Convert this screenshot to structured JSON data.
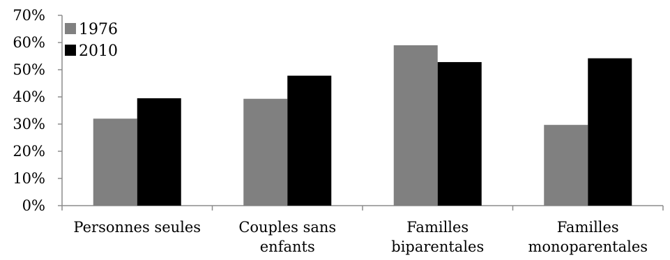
{
  "chart_data": {
    "type": "bar",
    "title": "",
    "xlabel": "",
    "ylabel": "",
    "categories": [
      [
        "Personnes seules"
      ],
      [
        "Couples sans",
        "enfants"
      ],
      [
        "Familles",
        "biparentales"
      ],
      [
        "Familles",
        "monoparentales"
      ]
    ],
    "series": [
      {
        "name": "1976",
        "color": "#808080",
        "values": [
          32,
          39.3,
          59,
          29.7
        ]
      },
      {
        "name": "2010",
        "color": "#000000",
        "values": [
          39.5,
          47.8,
          52.8,
          54.2
        ]
      }
    ],
    "ylim": [
      0,
      70
    ],
    "yticks": [
      0,
      10,
      20,
      30,
      40,
      50,
      60,
      70
    ],
    "ytick_format": "{v}%",
    "legend_position": "top-left",
    "grid": false
  }
}
